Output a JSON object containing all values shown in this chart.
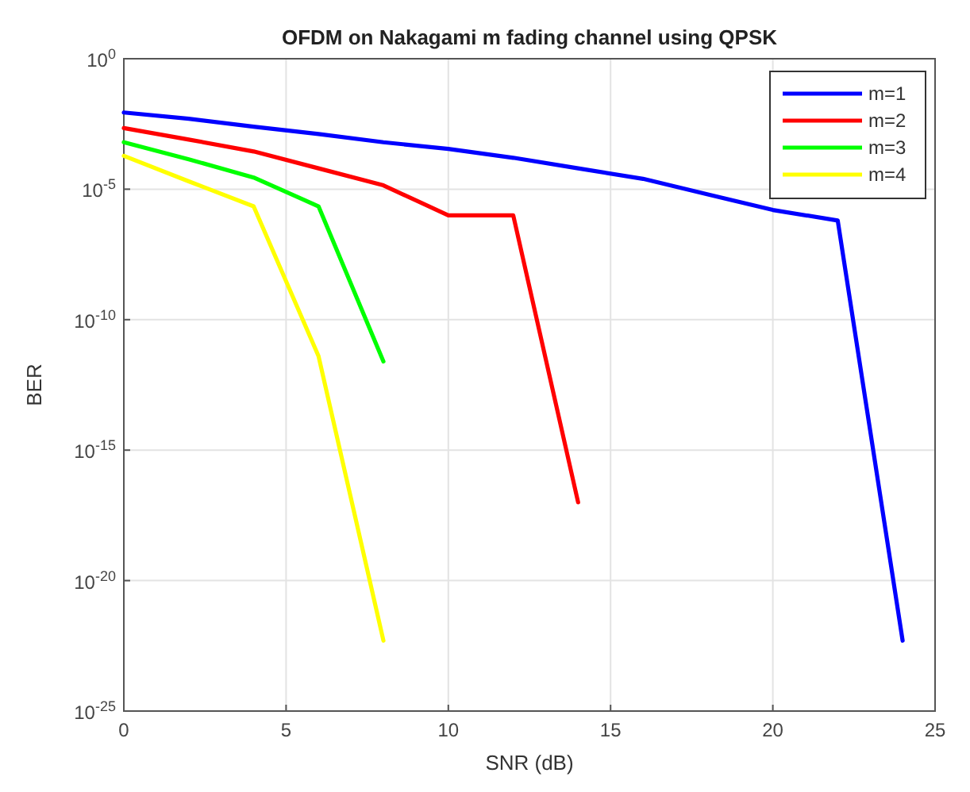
{
  "chart_data": {
    "type": "line",
    "title": "OFDM on Nakagami m fading channel using QPSK",
    "xlabel": "SNR (dB)",
    "ylabel": "BER",
    "log": "y",
    "grid": true,
    "legend": "top right",
    "marker": "none",
    "line_style": "solid",
    "xlim": [
      0,
      25
    ],
    "xticks": [
      0,
      5,
      10,
      15,
      20,
      25
    ],
    "ylim": [
      1e-25,
      1
    ],
    "yticks": [
      {
        "value": 1e-25,
        "label": "10$^{-25}$"
      },
      {
        "value": 1e-20,
        "label": "10$^{-20}$"
      },
      {
        "value": 1e-15,
        "label": "10$^{-15}$"
      },
      {
        "value": 1e-10,
        "label": "10$^{-10}$"
      },
      {
        "value": 1e-05,
        "label": "10$^{-5}$"
      },
      {
        "value": 1,
        "label": "10$^{0}$"
      }
    ],
    "series": [
      {
        "name": "m=1",
        "color": "#0000ff",
        "x": [
          0,
          2,
          4,
          6,
          8,
          10,
          12,
          14,
          16,
          18,
          20,
          22,
          24
        ],
        "values": [
          0.0087,
          0.005,
          0.0025,
          0.0013,
          0.00063,
          0.00035,
          0.00016,
          6.3e-05,
          2.5e-05,
          6.3e-06,
          1.6e-06,
          6.3e-07,
          5e-23
        ]
      },
      {
        "name": "m=2",
        "color": "#ff0000",
        "x": [
          0,
          2,
          4,
          6,
          8,
          10,
          12,
          14
        ],
        "values": [
          0.0022,
          0.0008,
          0.00028,
          6.3e-05,
          1.4e-05,
          1e-06,
          1e-06,
          1e-17
        ]
      },
      {
        "name": "m=3",
        "color": "#00ff00",
        "x": [
          0,
          2,
          4,
          6,
          8
        ],
        "values": [
          0.00063,
          0.00014,
          2.8e-05,
          2.2e-06,
          2.5e-12
        ]
      },
      {
        "name": "m=4",
        "color": "#ffff00",
        "x": [
          0,
          2,
          4,
          6,
          8
        ],
        "values": [
          0.00019,
          2e-05,
          2.2e-06,
          4e-12,
          5e-23
        ]
      }
    ]
  }
}
